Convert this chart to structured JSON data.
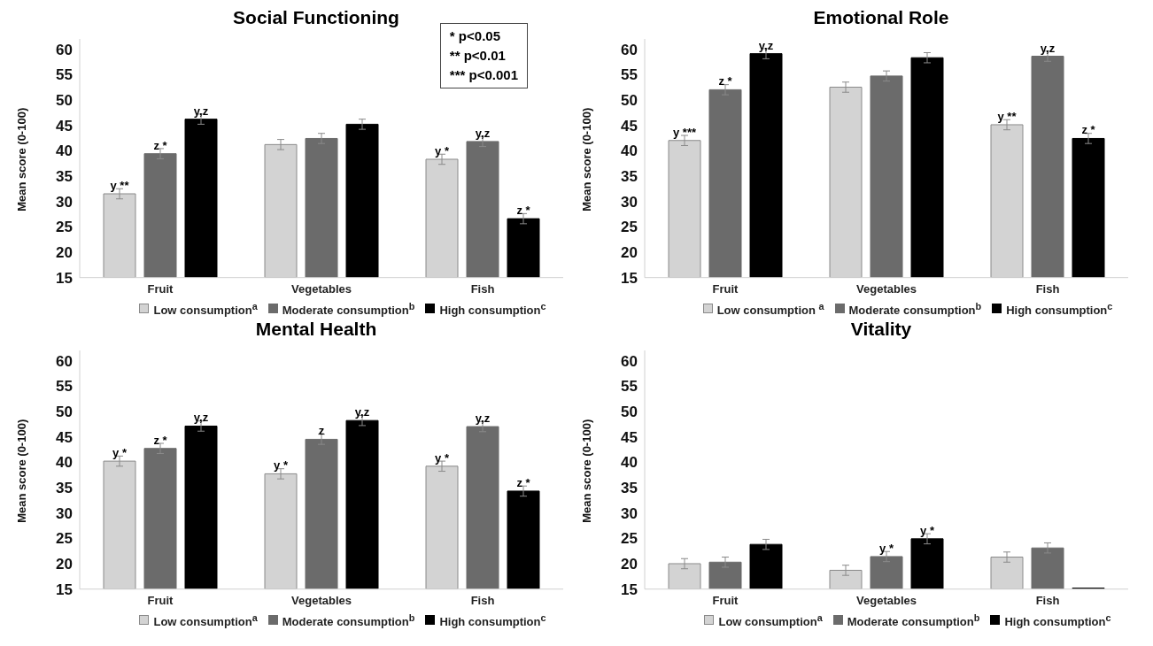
{
  "chart_data": [
    {
      "type": "bar",
      "title": "Social Functioning",
      "ylabel": "Mean score (0-100)",
      "categories": [
        "Fruit",
        "Vegetables",
        "Fish"
      ],
      "ylim": [
        15,
        62
      ],
      "yticks": [
        15,
        20,
        25,
        30,
        35,
        40,
        45,
        50,
        55,
        60
      ],
      "grid": false,
      "legend": "bottom",
      "series": [
        {
          "name": "Low consumption$^{a}$",
          "color": "#d3d3d3",
          "values": [
            31.5,
            41.2,
            38.3
          ],
          "errors": [
            1,
            1,
            1
          ],
          "value_labels": [
            "y **",
            null,
            "y *"
          ]
        },
        {
          "name": "Moderate consumption$^{b}$",
          "color": "#6b6b6b",
          "values": [
            39.4,
            42.4,
            41.8
          ],
          "errors": [
            1,
            1,
            1
          ],
          "value_labels": [
            "z *",
            null,
            "y,z"
          ]
        },
        {
          "name": "High consumption$^{c}$",
          "color": "#000000",
          "values": [
            46.2,
            45.2,
            26.6
          ],
          "errors": [
            1,
            1,
            1
          ],
          "value_labels": [
            "y,z",
            null,
            "z *"
          ]
        }
      ],
      "annotations": [
        "* p<0.05",
        "** p<0.01",
        "*** p<0.001"
      ]
    },
    {
      "type": "bar",
      "title": "Emotional Role",
      "ylabel": "Mean score (0-100)",
      "categories": [
        "Fruit",
        "Vegetables",
        "Fish"
      ],
      "ylim": [
        15,
        62
      ],
      "yticks": [
        15,
        20,
        25,
        30,
        35,
        40,
        45,
        50,
        55,
        60
      ],
      "grid": false,
      "legend": "bottom",
      "series": [
        {
          "name": "Low consumption $^{a}$",
          "color": "#d3d3d3",
          "values": [
            42.0,
            52.5,
            45.1
          ],
          "errors": [
            1,
            1,
            1
          ],
          "value_labels": [
            "y ***",
            null,
            "y **"
          ]
        },
        {
          "name": "Moderate consumption$^{b}$",
          "color": "#6b6b6b",
          "values": [
            52.0,
            54.7,
            58.6
          ],
          "errors": [
            1,
            1,
            1
          ],
          "value_labels": [
            "z *",
            null,
            "y,z"
          ]
        },
        {
          "name": "High consumption$^{c}$",
          "color": "#000000",
          "values": [
            59.1,
            58.3,
            42.4
          ],
          "errors": [
            1,
            1,
            1
          ],
          "value_labels": [
            "y,z",
            null,
            "z *"
          ]
        }
      ]
    },
    {
      "type": "bar",
      "title": "Mental Health",
      "ylabel": "Mean score (0-100)",
      "categories": [
        "Fruit",
        "Vegetables",
        "Fish"
      ],
      "ylim": [
        15,
        62
      ],
      "yticks": [
        15,
        20,
        25,
        30,
        35,
        40,
        45,
        50,
        55,
        60
      ],
      "grid": false,
      "legend": "bottom",
      "series": [
        {
          "name": "Low consumption$^{a}$",
          "color": "#d3d3d3",
          "values": [
            40.2,
            37.7,
            39.2
          ],
          "errors": [
            1,
            1,
            1
          ],
          "value_labels": [
            "y *",
            "y *",
            "y *"
          ]
        },
        {
          "name": "Moderate consumption$^{b}$",
          "color": "#6b6b6b",
          "values": [
            42.7,
            44.5,
            47.0
          ],
          "errors": [
            1,
            1,
            1
          ],
          "value_labels": [
            "z *",
            "z",
            "y,z"
          ]
        },
        {
          "name": "High consumption$^{c}$",
          "color": "#000000",
          "values": [
            47.1,
            48.2,
            34.3
          ],
          "errors": [
            1,
            1,
            1
          ],
          "value_labels": [
            "y,z",
            "y,z",
            "z *"
          ]
        }
      ]
    },
    {
      "type": "bar",
      "title": "Vitality",
      "ylabel": "Mean score (0-100)",
      "categories": [
        "Fruit",
        "Vegetables",
        "Fish"
      ],
      "ylim": [
        15,
        62
      ],
      "yticks": [
        15,
        20,
        25,
        30,
        35,
        40,
        45,
        50,
        55,
        60
      ],
      "grid": false,
      "legend": "bottom",
      "series": [
        {
          "name": "Low consumption$^{a}$",
          "color": "#d3d3d3",
          "values": [
            20.0,
            18.7,
            21.3
          ],
          "errors": [
            1,
            1,
            1
          ],
          "value_labels": [
            null,
            null,
            null
          ]
        },
        {
          "name": "Moderate consumption$^{b}$",
          "color": "#6b6b6b",
          "values": [
            20.3,
            21.4,
            23.1
          ],
          "errors": [
            1,
            1,
            1
          ],
          "value_labels": [
            null,
            "y *",
            null
          ]
        },
        {
          "name": "High consumption$^{c}$",
          "color": "#000000",
          "values": [
            23.8,
            24.9,
            15.2
          ],
          "errors": [
            1,
            1,
            null
          ],
          "value_labels": [
            null,
            "y *",
            null
          ]
        }
      ]
    }
  ]
}
